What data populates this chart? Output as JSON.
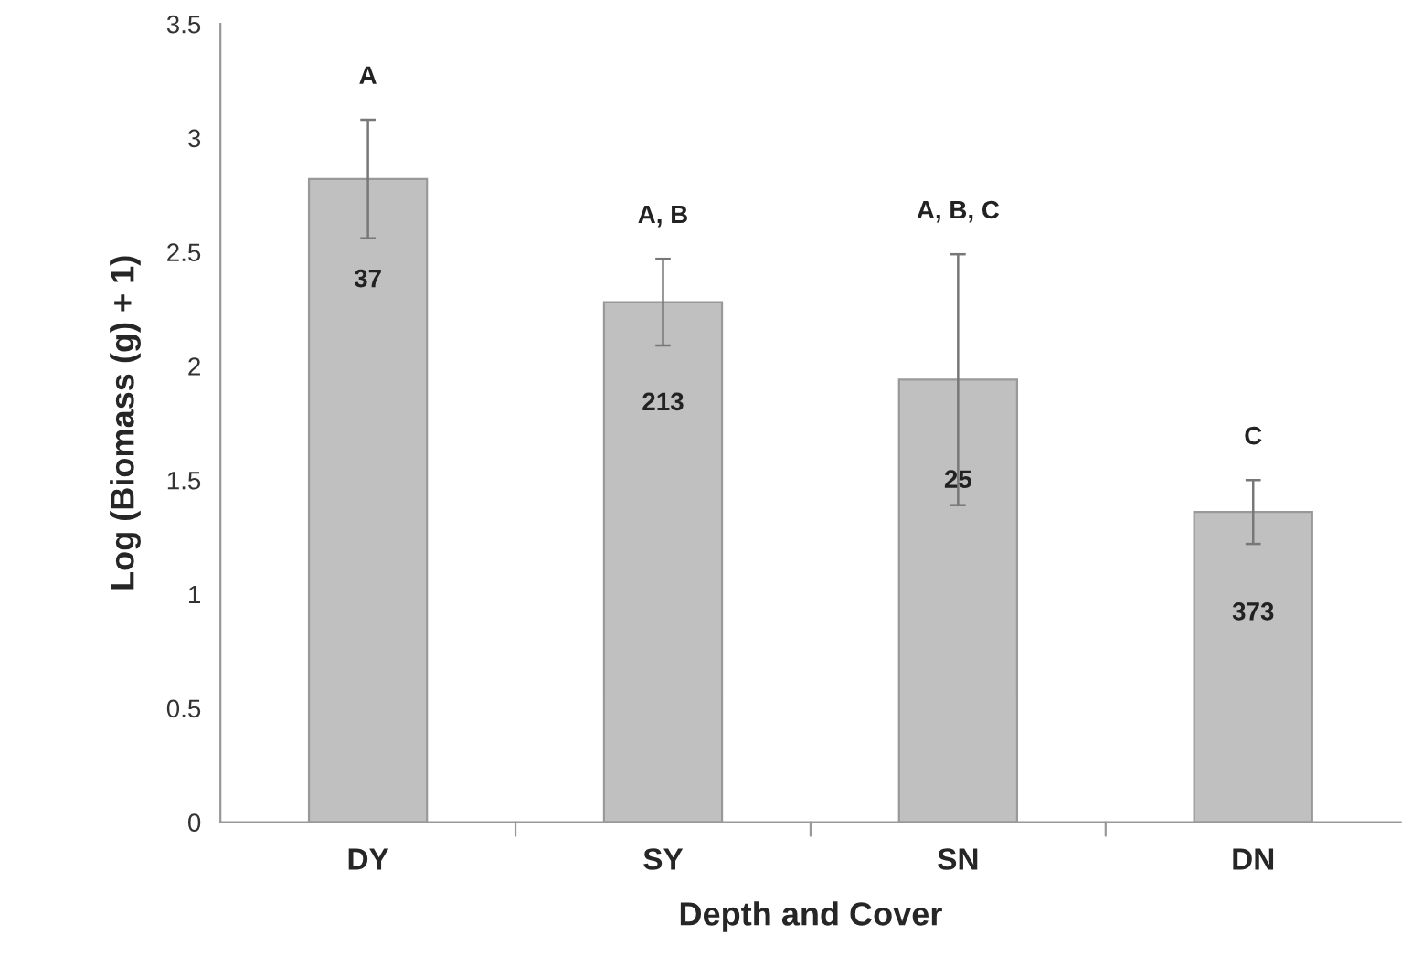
{
  "chart_data": {
    "type": "bar",
    "xlabel": "Depth and Cover",
    "ylabel": "Log (Biomass (g) + 1)",
    "categories": [
      "DY",
      "SY",
      "SN",
      "DN"
    ],
    "values": [
      2.82,
      2.28,
      1.94,
      1.36
    ],
    "errors": [
      0.26,
      0.19,
      0.55,
      0.14
    ],
    "color": "#c0c0c0",
    "ylim": [
      0,
      3.5
    ],
    "yticks": [
      0,
      0.5,
      1,
      1.5,
      2,
      2.5,
      3,
      3.5
    ],
    "grid": false,
    "legend": false,
    "annotations": [
      "A",
      "A, B",
      "A, B, C",
      "C",
      "37",
      "213",
      "25",
      "373"
    ]
  }
}
